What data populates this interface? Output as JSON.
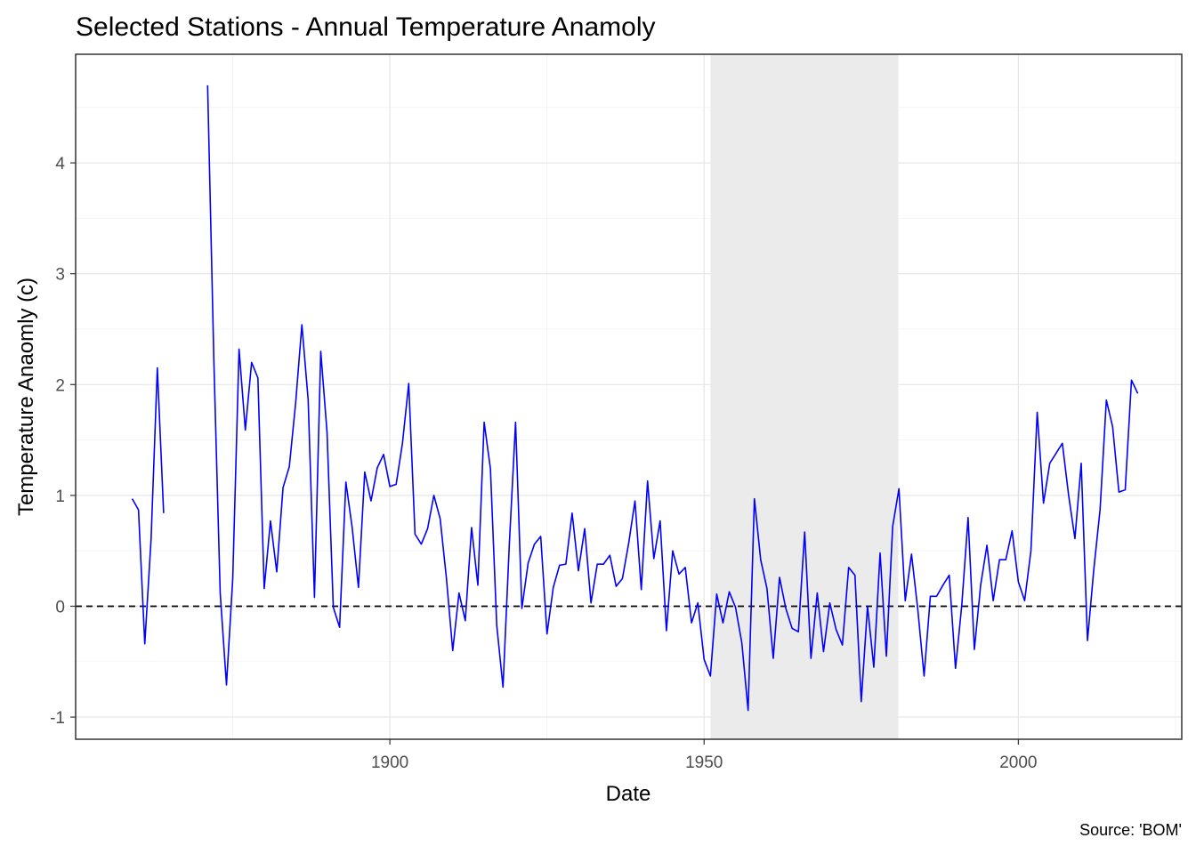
{
  "chart_data": {
    "type": "line",
    "title": "Selected Stations - Annual Temperature Anamoly",
    "xlabel": "Date",
    "ylabel": "Temperature Anaomly (c)",
    "caption": "Source: 'BOM'",
    "xlim": [
      1850,
      2026
    ],
    "ylim": [
      -1.2,
      4.98
    ],
    "x_ticks": [
      1900,
      1950,
      2000
    ],
    "y_ticks": [
      -1,
      0,
      1,
      2,
      3,
      4
    ],
    "grid": true,
    "legend": "none",
    "reference_line": {
      "y": 0,
      "style": "dashed",
      "color": "#000000"
    },
    "shaded_region": {
      "x_start": 1951,
      "x_end": 1980.9,
      "color": "#ebebeb"
    },
    "series": [
      {
        "color": "#0000ff",
        "segments": [
          {
            "x": [
              1859,
              1860,
              1861,
              1862,
              1863,
              1864
            ],
            "y": [
              0.97,
              0.87,
              -0.34,
              0.6,
              2.15,
              0.84
            ]
          },
          {
            "x": [
              1871,
              1872,
              1873,
              1874,
              1875,
              1876,
              1877,
              1878,
              1879,
              1880,
              1881,
              1882,
              1883,
              1884,
              1885,
              1886,
              1887,
              1888,
              1889,
              1890,
              1891,
              1892,
              1893,
              1894,
              1895,
              1896,
              1897,
              1898,
              1899,
              1900,
              1901,
              1902,
              1903,
              1904,
              1905,
              1906,
              1907,
              1908,
              1909,
              1910,
              1911,
              1912,
              1913,
              1914,
              1915,
              1916,
              1917,
              1918,
              1919,
              1920,
              1921,
              1922,
              1923,
              1924,
              1925,
              1926,
              1927,
              1928,
              1929,
              1930,
              1931,
              1932,
              1933,
              1934,
              1935,
              1936,
              1937,
              1938,
              1939,
              1940,
              1941,
              1942,
              1943,
              1944,
              1945,
              1946,
              1947,
              1948,
              1949,
              1950,
              1951,
              1952,
              1953,
              1954,
              1955,
              1956,
              1957,
              1958,
              1959,
              1960,
              1961,
              1962,
              1963,
              1964,
              1965,
              1966,
              1967,
              1968,
              1969,
              1970,
              1971,
              1972,
              1973,
              1974,
              1975,
              1976,
              1977,
              1978,
              1979,
              1980,
              1981,
              1982,
              1983,
              1984,
              1985,
              1986,
              1987,
              1988,
              1989,
              1990,
              1991,
              1992,
              1993,
              1994,
              1995,
              1996,
              1997,
              1998,
              1999,
              2000,
              2001,
              2002,
              2003,
              2004,
              2005,
              2006,
              2007,
              2008,
              2009,
              2010,
              2011,
              2012,
              2013,
              2014,
              2015,
              2016,
              2017,
              2018,
              2019
            ],
            "y": [
              4.7,
              2.2,
              0.12,
              -0.71,
              0.25,
              2.32,
              1.59,
              2.2,
              2.06,
              0.16,
              0.77,
              0.31,
              1.07,
              1.26,
              1.83,
              2.54,
              1.86,
              0.08,
              2.3,
              1.57,
              -0.01,
              -0.19,
              1.12,
              0.71,
              0.17,
              1.21,
              0.95,
              1.25,
              1.37,
              1.08,
              1.1,
              1.47,
              2.01,
              0.65,
              0.56,
              0.7,
              1.0,
              0.79,
              0.25,
              -0.4,
              0.12,
              -0.13,
              0.71,
              0.19,
              1.66,
              1.24,
              -0.17,
              -0.73,
              0.55,
              1.66,
              -0.02,
              0.39,
              0.56,
              0.63,
              -0.25,
              0.17,
              0.37,
              0.38,
              0.84,
              0.32,
              0.7,
              0.03,
              0.38,
              0.38,
              0.46,
              0.18,
              0.25,
              0.57,
              0.95,
              0.15,
              1.13,
              0.43,
              0.77,
              -0.22,
              0.5,
              0.29,
              0.35,
              -0.15,
              0.03,
              -0.48,
              -0.63,
              0.11,
              -0.15,
              0.13,
              -0.01,
              -0.33,
              -0.94,
              0.97,
              0.42,
              0.16,
              -0.47,
              0.26,
              -0.02,
              -0.2,
              -0.23,
              0.67,
              -0.47,
              0.12,
              -0.41,
              0.03,
              -0.21,
              -0.35,
              0.35,
              0.28,
              -0.86,
              0.0,
              -0.55,
              0.48,
              -0.45,
              0.72,
              1.06,
              0.05,
              0.47,
              -0.03,
              -0.63,
              0.09,
              0.09,
              0.19,
              0.28,
              -0.56,
              0.01,
              0.8,
              -0.39,
              0.19,
              0.55,
              0.05,
              0.42,
              0.42,
              0.68,
              0.22,
              0.05,
              0.5,
              1.75,
              0.93,
              1.29,
              1.38,
              1.47,
              1.0,
              0.61,
              1.29,
              -0.31,
              0.33,
              0.87,
              1.86,
              1.62,
              1.03,
              1.05,
              2.04,
              1.92
            ]
          }
        ]
      }
    ]
  }
}
